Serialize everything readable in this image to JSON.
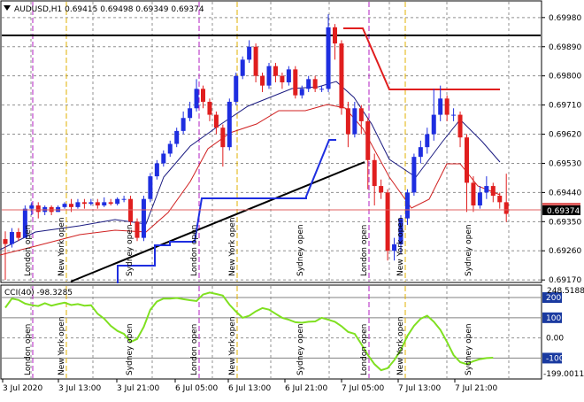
{
  "header": {
    "symbol": "AUDUSD,H1",
    "ohlc": "0.69415 0.69498 0.69349 0.69374",
    "arrow_icon": "triangle-down-icon"
  },
  "indicator": {
    "label": "CCI(40) -98.3285",
    "top_value": "248.5188",
    "bottom_value": "-199.0011",
    "levels": [
      "200",
      "100",
      "0.00",
      "-100"
    ]
  },
  "price_axis": {
    "labels": [
      "0.69980",
      "0.69890",
      "0.69800",
      "0.69710",
      "0.69620",
      "0.69530",
      "0.69440",
      "0.69350",
      "0.69260",
      "0.69170"
    ],
    "current_price": "0.69374",
    "hidden_marker": "0.69387"
  },
  "time_axis": [
    "3 Jul 2020",
    "3 Jul 13:00",
    "3 Jul 21:00",
    "6 Jul 05:00",
    "6 Jul 13:00",
    "6 Jul 21:00",
    "7 Jul 05:00",
    "7 Jul 13:00",
    "7 Jul 21:00"
  ],
  "session_labels": [
    "London open",
    "New York open",
    "Sydney open",
    "London open",
    "New York open",
    "Sydney open",
    "London open",
    "New York open",
    "Sydney open"
  ],
  "colors": {
    "bull": "#1e2ee0",
    "bear": "#e01e1e",
    "cci": "#7fe020",
    "london_line": "#b01ec0",
    "ny_line": "#e0b000",
    "level_line": "#000000",
    "current_price_bg": "#000000"
  },
  "chart_data": {
    "type": "candlestick",
    "candles": [
      [
        0.69296,
        0.69281,
        0.6932,
        0.6917
      ],
      [
        0.69281,
        0.69318,
        0.6933,
        0.6927
      ],
      [
        0.69318,
        0.693,
        0.6933,
        0.6929
      ],
      [
        0.693,
        0.6939,
        0.694,
        0.693
      ],
      [
        0.6939,
        0.694,
        0.6941,
        0.6937
      ],
      [
        0.694,
        0.6938,
        0.6941,
        0.6936
      ],
      [
        0.6938,
        0.69395,
        0.694,
        0.6937
      ],
      [
        0.69395,
        0.6938,
        0.694,
        0.6937
      ],
      [
        0.6938,
        0.69395,
        0.694,
        0.6938
      ],
      [
        0.69395,
        0.69405,
        0.6941,
        0.6939
      ],
      [
        0.69405,
        0.69395,
        0.6942,
        0.6938
      ],
      [
        0.69395,
        0.6941,
        0.6942,
        0.6939
      ],
      [
        0.6941,
        0.69405,
        0.6942,
        0.6939
      ],
      [
        0.69405,
        0.6941,
        0.6942,
        0.694
      ],
      [
        0.6941,
        0.694,
        0.6942,
        0.6939
      ],
      [
        0.694,
        0.6941,
        0.69425,
        0.69395
      ],
      [
        0.6941,
        0.69405,
        0.6942,
        0.694
      ],
      [
        0.69405,
        0.6942,
        0.69425,
        0.694
      ],
      [
        0.6942,
        0.6942,
        0.6943,
        0.6941
      ],
      [
        0.6942,
        0.6935,
        0.6943,
        0.6934
      ],
      [
        0.6935,
        0.693,
        0.6936,
        0.6929
      ],
      [
        0.693,
        0.6942,
        0.6943,
        0.6929
      ],
      [
        0.6942,
        0.6949,
        0.695,
        0.6941
      ],
      [
        0.6949,
        0.6953,
        0.6954,
        0.6948
      ],
      [
        0.6953,
        0.6956,
        0.6957,
        0.6952
      ],
      [
        0.6956,
        0.6959,
        0.696,
        0.6955
      ],
      [
        0.6959,
        0.6963,
        0.6964,
        0.6958
      ],
      [
        0.6963,
        0.6967,
        0.6969,
        0.6962
      ],
      [
        0.6967,
        0.697,
        0.6972,
        0.6966
      ],
      [
        0.697,
        0.6976,
        0.6979,
        0.6969
      ],
      [
        0.6976,
        0.6972,
        0.6977,
        0.697
      ],
      [
        0.6972,
        0.6968,
        0.6973,
        0.6966
      ],
      [
        0.6968,
        0.6964,
        0.6969,
        0.6962
      ],
      [
        0.6964,
        0.6958,
        0.6965,
        0.6952
      ],
      [
        0.6958,
        0.6972,
        0.6973,
        0.6957
      ],
      [
        0.6972,
        0.698,
        0.6981,
        0.6971
      ],
      [
        0.698,
        0.6985,
        0.6986,
        0.6979
      ],
      [
        0.6985,
        0.6989,
        0.6991,
        0.6984
      ],
      [
        0.6989,
        0.698,
        0.699,
        0.6978
      ],
      [
        0.698,
        0.6977,
        0.6981,
        0.6975
      ],
      [
        0.6977,
        0.6983,
        0.6984,
        0.6976
      ],
      [
        0.6983,
        0.698,
        0.6984,
        0.6978
      ],
      [
        0.698,
        0.6978,
        0.6981,
        0.6976
      ],
      [
        0.6978,
        0.6982,
        0.6983,
        0.6977
      ],
      [
        0.6982,
        0.6974,
        0.6983,
        0.6973
      ],
      [
        0.6974,
        0.6976,
        0.6977,
        0.6973
      ],
      [
        0.6976,
        0.6979,
        0.698,
        0.6975
      ],
      [
        0.6979,
        0.6976,
        0.698,
        0.6975
      ],
      [
        0.6976,
        0.6976,
        0.6977,
        0.6975
      ],
      [
        0.6976,
        0.6995,
        0.6999,
        0.6975
      ],
      [
        0.6995,
        0.699,
        0.6996,
        0.6985
      ],
      [
        0.699,
        0.697,
        0.6991,
        0.6968
      ],
      [
        0.697,
        0.6962,
        0.6972,
        0.6958
      ],
      [
        0.6962,
        0.697,
        0.6972,
        0.6961
      ],
      [
        0.697,
        0.6966,
        0.6971,
        0.6962
      ],
      [
        0.6966,
        0.6954,
        0.6967,
        0.6945
      ],
      [
        0.6954,
        0.6946,
        0.6956,
        0.694
      ],
      [
        0.6946,
        0.6944,
        0.6948,
        0.6942
      ],
      [
        0.6944,
        0.6926,
        0.6945,
        0.6923
      ],
      [
        0.6926,
        0.6928,
        0.693,
        0.6923
      ],
      [
        0.6928,
        0.6936,
        0.6937,
        0.6925
      ],
      [
        0.6936,
        0.6944,
        0.6945,
        0.6934
      ],
      [
        0.6944,
        0.6955,
        0.6956,
        0.6943
      ],
      [
        0.6955,
        0.6958,
        0.696,
        0.6953
      ],
      [
        0.6958,
        0.6962,
        0.6964,
        0.6956
      ],
      [
        0.6962,
        0.6968,
        0.6976,
        0.696
      ],
      [
        0.6968,
        0.6973,
        0.6977,
        0.6966
      ],
      [
        0.6973,
        0.6968,
        0.6974,
        0.6966
      ],
      [
        0.6968,
        0.6968,
        0.697,
        0.6966
      ],
      [
        0.6968,
        0.6961,
        0.6969,
        0.6958
      ],
      [
        0.6961,
        0.6947,
        0.6962,
        0.6938
      ],
      [
        0.6947,
        0.694,
        0.6949,
        0.6938
      ],
      [
        0.694,
        0.6944,
        0.6946,
        0.6939
      ],
      [
        0.6944,
        0.6946,
        0.6949,
        0.6942
      ],
      [
        0.6946,
        0.6943,
        0.6947,
        0.6941
      ],
      [
        0.6943,
        0.6941,
        0.6944,
        0.6939
      ],
      [
        0.6941,
        0.69374,
        0.69498,
        0.69349
      ]
    ],
    "cci": [
      150,
      195,
      188,
      170,
      162,
      158,
      172,
      160,
      168,
      175,
      163,
      168,
      160,
      162,
      120,
      95,
      60,
      35,
      20,
      -20,
      -5,
      55,
      140,
      180,
      195,
      195,
      198,
      192,
      187,
      183,
      215,
      225,
      218,
      210,
      165,
      130,
      100,
      110,
      132,
      148,
      140,
      120,
      100,
      90,
      78,
      75,
      80,
      82,
      100,
      90,
      80,
      58,
      30,
      20,
      -30,
      -85,
      -130,
      -160,
      -150,
      -110,
      -60,
      10,
      60,
      95,
      110,
      80,
      40,
      -20,
      -85,
      -120,
      -130,
      -115,
      -105,
      -100,
      -98
    ],
    "price_range": [
      0.6917,
      0.7003
    ],
    "cci_range": [
      -199.0011,
      248.5188
    ]
  }
}
